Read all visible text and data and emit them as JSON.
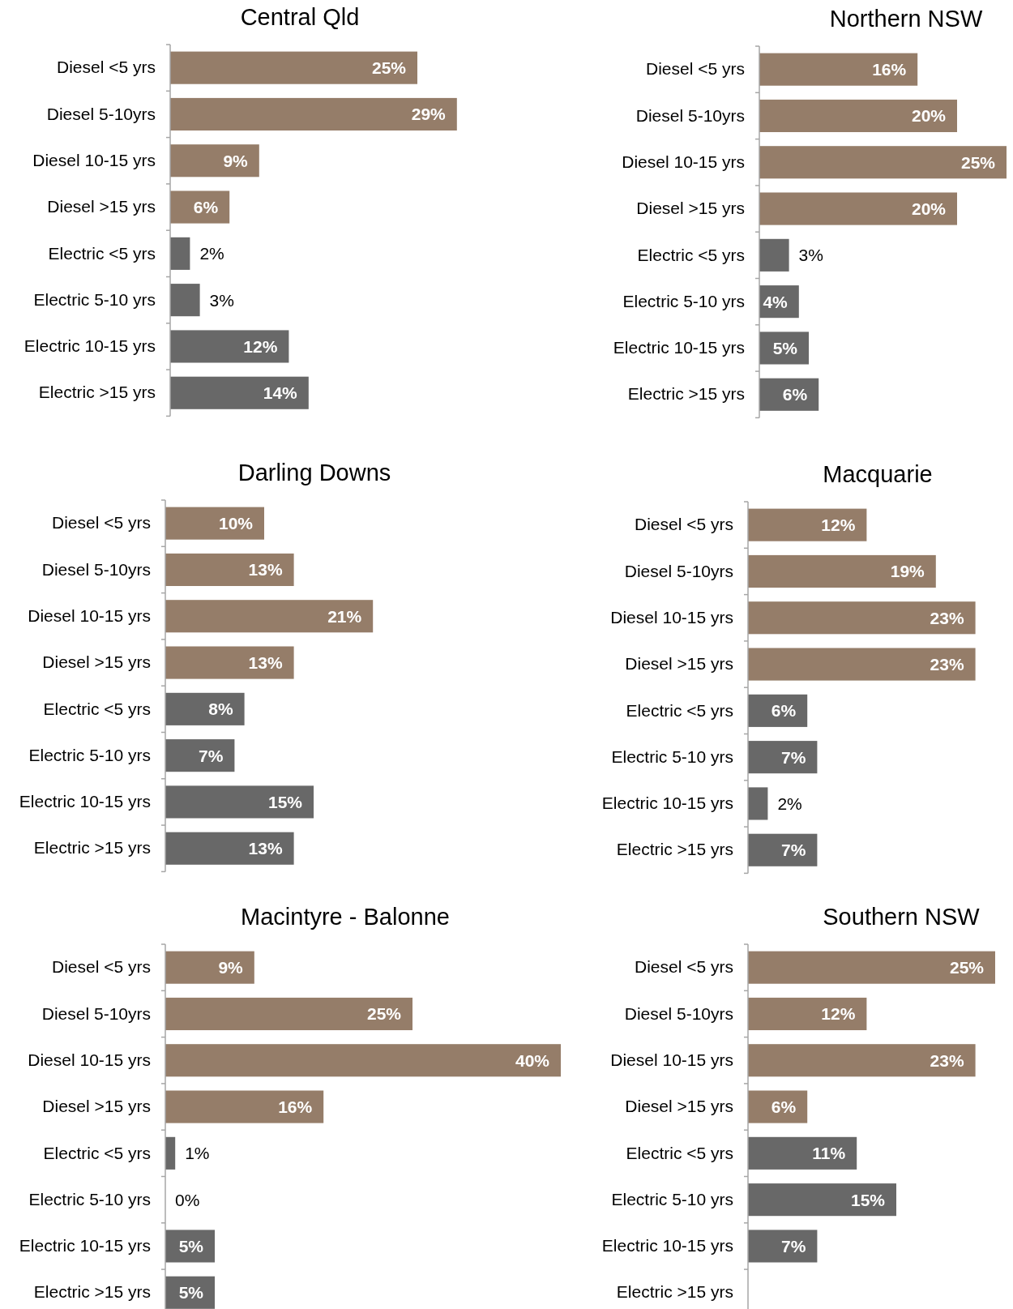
{
  "chart_data": [
    {
      "type": "bar",
      "orientation": "horizontal",
      "title": "Central Qld",
      "categories": [
        "Diesel <5 yrs",
        "Diesel 5-10yrs",
        "Diesel 10-15 yrs",
        "Diesel >15 yrs",
        "Electric <5 yrs",
        "Electric 5-10 yrs",
        "Electric 10-15 yrs",
        "Electric >15 yrs"
      ],
      "values": [
        25,
        29,
        9,
        6,
        2,
        3,
        12,
        14
      ],
      "colors": [
        "#957d69",
        "#957d69",
        "#957d69",
        "#957d69",
        "#686868",
        "#686868",
        "#686868",
        "#686868"
      ],
      "value_labels": [
        "25%",
        "29%",
        "9%",
        "6%",
        "2%",
        "3%",
        "12%",
        "14%"
      ]
    },
    {
      "type": "bar",
      "orientation": "horizontal",
      "title": "Northern NSW",
      "categories": [
        "Diesel <5 yrs",
        "Diesel 5-10yrs",
        "Diesel 10-15 yrs",
        "Diesel >15 yrs",
        "Electric <5 yrs",
        "Electric 5-10 yrs",
        "Electric 10-15 yrs",
        "Electric >15 yrs"
      ],
      "values": [
        16,
        20,
        25,
        20,
        3,
        4,
        5,
        6
      ],
      "colors": [
        "#957d69",
        "#957d69",
        "#957d69",
        "#957d69",
        "#686868",
        "#686868",
        "#686868",
        "#686868"
      ],
      "value_labels": [
        "16%",
        "20%",
        "25%",
        "20%",
        "3%",
        "4%",
        "5%",
        "6%"
      ]
    },
    {
      "type": "bar",
      "orientation": "horizontal",
      "title": "Darling Downs",
      "categories": [
        "Diesel <5 yrs",
        "Diesel 5-10yrs",
        "Diesel 10-15 yrs",
        "Diesel >15 yrs",
        "Electric <5 yrs",
        "Electric 5-10 yrs",
        "Electric 10-15 yrs",
        "Electric >15 yrs"
      ],
      "values": [
        10,
        13,
        21,
        13,
        8,
        7,
        15,
        13
      ],
      "colors": [
        "#957d69",
        "#957d69",
        "#957d69",
        "#957d69",
        "#686868",
        "#686868",
        "#686868",
        "#686868"
      ],
      "value_labels": [
        "10%",
        "13%",
        "21%",
        "13%",
        "8%",
        "7%",
        "15%",
        "13%"
      ]
    },
    {
      "type": "bar",
      "orientation": "horizontal",
      "title": "Macquarie",
      "categories": [
        "Diesel <5 yrs",
        "Diesel 5-10yrs",
        "Diesel 10-15 yrs",
        "Diesel >15 yrs",
        "Electric <5 yrs",
        "Electric 5-10 yrs",
        "Electric 10-15 yrs",
        "Electric >15 yrs"
      ],
      "values": [
        12,
        19,
        23,
        23,
        6,
        7,
        2,
        7
      ],
      "colors": [
        "#957d69",
        "#957d69",
        "#957d69",
        "#957d69",
        "#686868",
        "#686868",
        "#686868",
        "#686868"
      ],
      "value_labels": [
        "12%",
        "19%",
        "23%",
        "23%",
        "6%",
        "7%",
        "2%",
        "7%"
      ]
    },
    {
      "type": "bar",
      "orientation": "horizontal",
      "title": "Macintyre - Balonne",
      "categories": [
        "Diesel <5 yrs",
        "Diesel 5-10yrs",
        "Diesel 10-15 yrs",
        "Diesel >15 yrs",
        "Electric <5 yrs",
        "Electric 5-10 yrs",
        "Electric 10-15 yrs",
        "Electric >15 yrs"
      ],
      "values": [
        9,
        25,
        40,
        16,
        1,
        0,
        5,
        5
      ],
      "colors": [
        "#957d69",
        "#957d69",
        "#957d69",
        "#957d69",
        "#686868",
        "#686868",
        "#686868",
        "#686868"
      ],
      "value_labels": [
        "9%",
        "25%",
        "40%",
        "16%",
        "1%",
        "0%",
        "5%",
        "5%"
      ]
    },
    {
      "type": "bar",
      "orientation": "horizontal",
      "title": "Southern NSW",
      "categories": [
        "Diesel <5 yrs",
        "Diesel 5-10yrs",
        "Diesel 10-15 yrs",
        "Diesel >15 yrs",
        "Electric <5 yrs",
        "Electric 5-10 yrs",
        "Electric 10-15 yrs",
        "Electric >15 yrs"
      ],
      "values": [
        25,
        12,
        23,
        6,
        11,
        15,
        7,
        null
      ],
      "colors": [
        "#957d69",
        "#957d69",
        "#957d69",
        "#957d69",
        "#686868",
        "#686868",
        "#686868",
        null
      ],
      "value_labels": [
        "25%",
        "12%",
        "23%",
        "6%",
        "11%",
        "15%",
        "7%",
        null
      ]
    }
  ]
}
